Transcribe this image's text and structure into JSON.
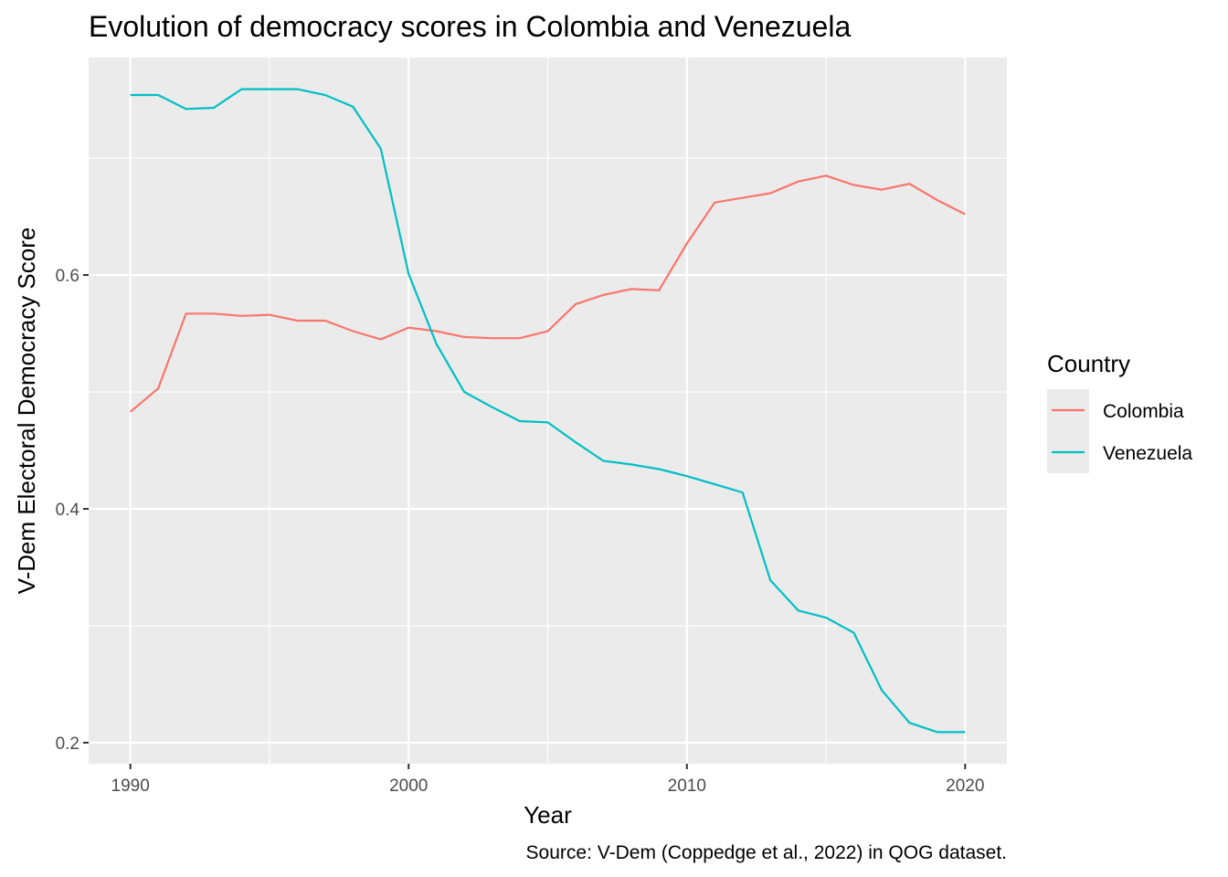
{
  "chart_data": {
    "type": "line",
    "title": "Evolution of democracy scores in Colombia and Venezuela",
    "xlabel": "Year",
    "ylabel": "V-Dem Electoral Democracy Score",
    "caption": "Source: V-Dem (Coppedge et al., 2022) in QOG dataset.",
    "xlim": [
      1988.5,
      2021.5
    ],
    "ylim": [
      0.182,
      0.786
    ],
    "x_ticks": [
      1990,
      2000,
      2010,
      2020
    ],
    "x_tick_labels": [
      "1990",
      "2000",
      "2010",
      "2020"
    ],
    "x_minor": [
      1995,
      2005,
      2015
    ],
    "y_ticks": [
      0.2,
      0.4,
      0.6
    ],
    "y_tick_labels": [
      "0.2",
      "0.4",
      "0.6"
    ],
    "y_minor": [
      0.3,
      0.5,
      0.7
    ],
    "grid": true,
    "legend": {
      "title": "Country",
      "placement": "right"
    },
    "x": [
      1990,
      1991,
      1992,
      1993,
      1994,
      1995,
      1996,
      1997,
      1998,
      1999,
      2000,
      2001,
      2002,
      2003,
      2004,
      2005,
      2006,
      2007,
      2008,
      2009,
      2010,
      2011,
      2012,
      2013,
      2014,
      2015,
      2016,
      2017,
      2018,
      2019,
      2020
    ],
    "series": [
      {
        "name": "Colombia",
        "color": "#F8766D",
        "values": [
          0.483,
          0.503,
          0.567,
          0.567,
          0.565,
          0.566,
          0.561,
          0.561,
          0.552,
          0.545,
          0.555,
          0.552,
          0.547,
          0.546,
          0.546,
          0.552,
          0.575,
          0.583,
          0.588,
          0.587,
          0.627,
          0.662,
          0.666,
          0.67,
          0.68,
          0.685,
          0.677,
          0.673,
          0.678,
          0.664,
          0.652
        ]
      },
      {
        "name": "Venezuela",
        "color": "#00BFC4",
        "values": [
          0.754,
          0.754,
          0.742,
          0.743,
          0.759,
          0.759,
          0.759,
          0.754,
          0.744,
          0.708,
          0.601,
          0.541,
          0.5,
          0.487,
          0.475,
          0.474,
          0.457,
          0.441,
          0.438,
          0.434,
          0.428,
          0.421,
          0.414,
          0.339,
          0.313,
          0.307,
          0.294,
          0.245,
          0.217,
          0.209,
          0.209
        ]
      }
    ]
  }
}
